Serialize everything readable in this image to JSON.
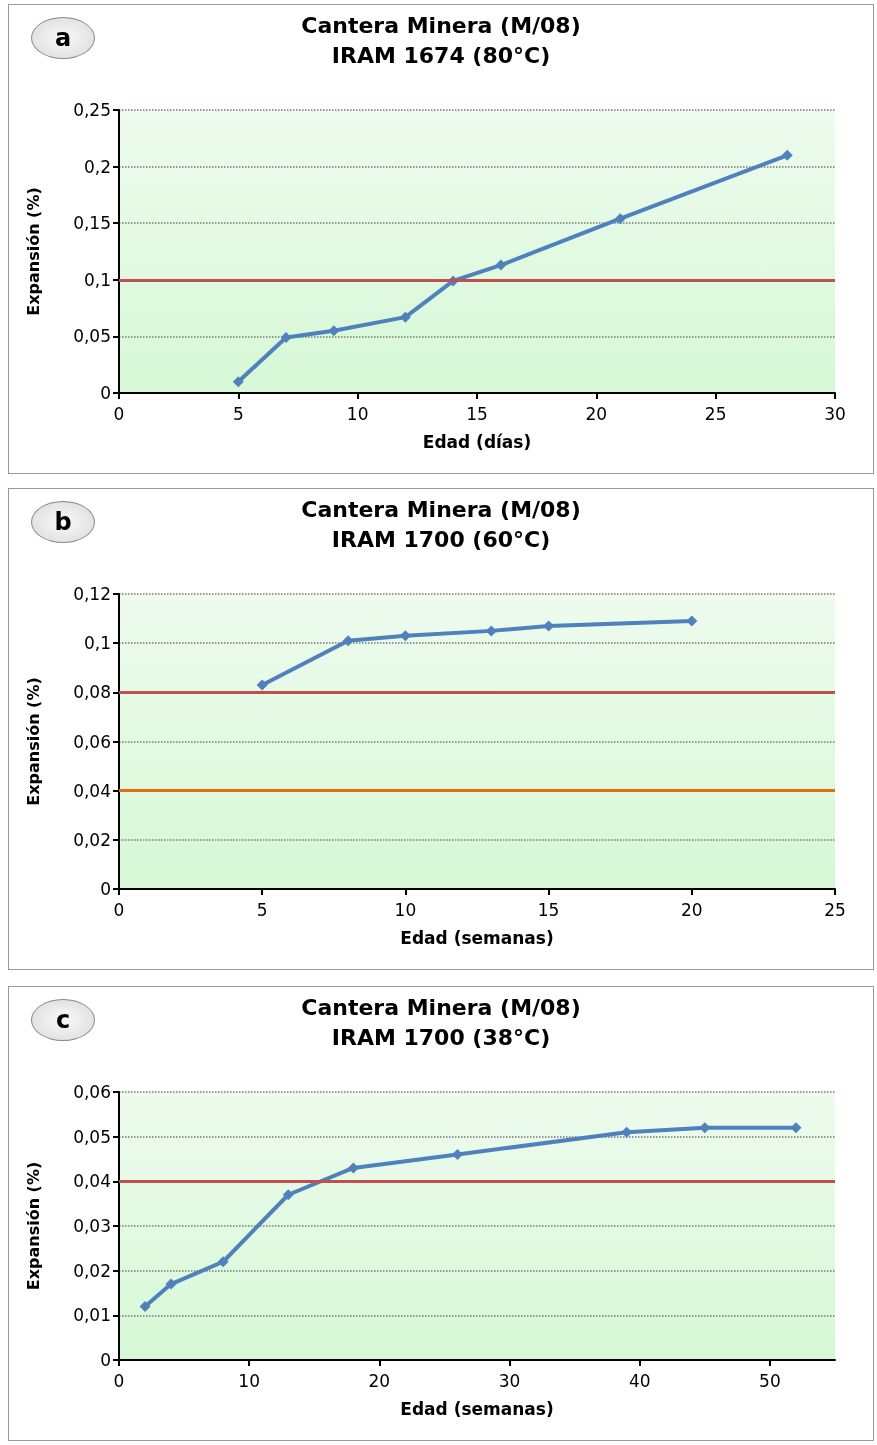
{
  "chart_data": [
    {
      "type": "line",
      "title": "Cantera Minera (M/08)",
      "subtitle": "IRAM 1674 (80°C)",
      "xlabel": "Edad (días)",
      "ylabel": "Expansión (%)",
      "annotations": [
        "a"
      ],
      "x": [
        5,
        7,
        9,
        12,
        14,
        16,
        21,
        28
      ],
      "series": [
        {
          "color": "#4f81bd",
          "values": [
            0.01,
            0.049,
            0.055,
            0.067,
            0.099,
            0.113,
            0.154,
            0.21
          ]
        }
      ],
      "xlim": [
        0,
        30
      ],
      "xticks": [
        0,
        5,
        10,
        15,
        20,
        25,
        30
      ],
      "ylim": [
        0,
        0.25
      ],
      "yticks": [
        {
          "value": 0,
          "label": "0"
        },
        {
          "value": 0.05,
          "label": "0,05"
        },
        {
          "value": 0.1,
          "label": "0,1"
        },
        {
          "value": 0.15,
          "label": "0,15"
        },
        {
          "value": 0.2,
          "label": "0,2"
        },
        {
          "value": 0.25,
          "label": "0,25"
        }
      ],
      "ref_lines": [
        {
          "axis": "y",
          "value": 0.1,
          "color": "#c0504d"
        }
      ],
      "grid": "y",
      "marker": "diamond",
      "line_style": "solid"
    },
    {
      "type": "line",
      "title": "Cantera Minera (M/08)",
      "subtitle": "IRAM 1700 (60°C)",
      "xlabel": "Edad (semanas)",
      "ylabel": "Expansión (%)",
      "annotations": [
        "b"
      ],
      "x": [
        5,
        8,
        10,
        13,
        15,
        20
      ],
      "series": [
        {
          "color": "#4f81bd",
          "values": [
            0.083,
            0.101,
            0.103,
            0.105,
            0.107,
            0.109
          ]
        }
      ],
      "xlim": [
        0,
        25
      ],
      "xticks": [
        0,
        5,
        10,
        15,
        20,
        25
      ],
      "ylim": [
        0,
        0.12
      ],
      "yticks": [
        {
          "value": 0,
          "label": "0"
        },
        {
          "value": 0.02,
          "label": "0,02"
        },
        {
          "value": 0.04,
          "label": "0,04"
        },
        {
          "value": 0.06,
          "label": "0,06"
        },
        {
          "value": 0.08,
          "label": "0,08"
        },
        {
          "value": 0.1,
          "label": "0,1"
        },
        {
          "value": 0.12,
          "label": "0,12"
        }
      ],
      "ref_lines": [
        {
          "axis": "y",
          "value": 0.08,
          "color": "#c0504d"
        },
        {
          "axis": "y",
          "value": 0.04,
          "color": "#e46c0a"
        }
      ],
      "grid": "y",
      "marker": "diamond",
      "line_style": "solid"
    },
    {
      "type": "line",
      "title": "Cantera Minera (M/08)",
      "subtitle": "IRAM 1700 (38°C)",
      "xlabel": "Edad (semanas)",
      "ylabel": "Expansión (%)",
      "annotations": [
        "c"
      ],
      "x": [
        2,
        4,
        8,
        13,
        18,
        26,
        39,
        45,
        52
      ],
      "series": [
        {
          "color": "#4f81bd",
          "values": [
            0.012,
            0.017,
            0.022,
            0.037,
            0.043,
            0.046,
            0.051,
            0.052,
            0.052
          ]
        }
      ],
      "xlim": [
        0,
        55
      ],
      "xticks": [
        0,
        10,
        20,
        30,
        40,
        50
      ],
      "ylim": [
        0,
        0.06
      ],
      "yticks": [
        {
          "value": 0,
          "label": "0"
        },
        {
          "value": 0.01,
          "label": "0,01"
        },
        {
          "value": 0.02,
          "label": "0,02"
        },
        {
          "value": 0.03,
          "label": "0,03"
        },
        {
          "value": 0.04,
          "label": "0,04"
        },
        {
          "value": 0.05,
          "label": "0,05"
        },
        {
          "value": 0.06,
          "label": "0,06"
        }
      ],
      "ref_lines": [
        {
          "axis": "y",
          "value": 0.04,
          "color": "#c0504d"
        }
      ],
      "grid": "y",
      "marker": "diamond",
      "line_style": "solid"
    }
  ]
}
